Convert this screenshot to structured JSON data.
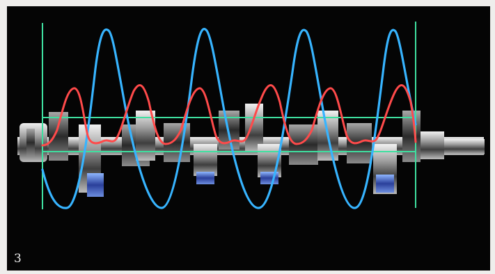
{
  "photo": {
    "figure_number": "3",
    "background_color": "#050505",
    "frame_color": "#efeeec",
    "overlay": {
      "vertical_marker_color": "#3fe0a0",
      "horizontal_marker_color": "#3fe0a0",
      "primary_wave_color": "#37b4ff",
      "secondary_wave_color": "#ff4a4a"
    },
    "subject_icon": "crankshaft-icon"
  }
}
